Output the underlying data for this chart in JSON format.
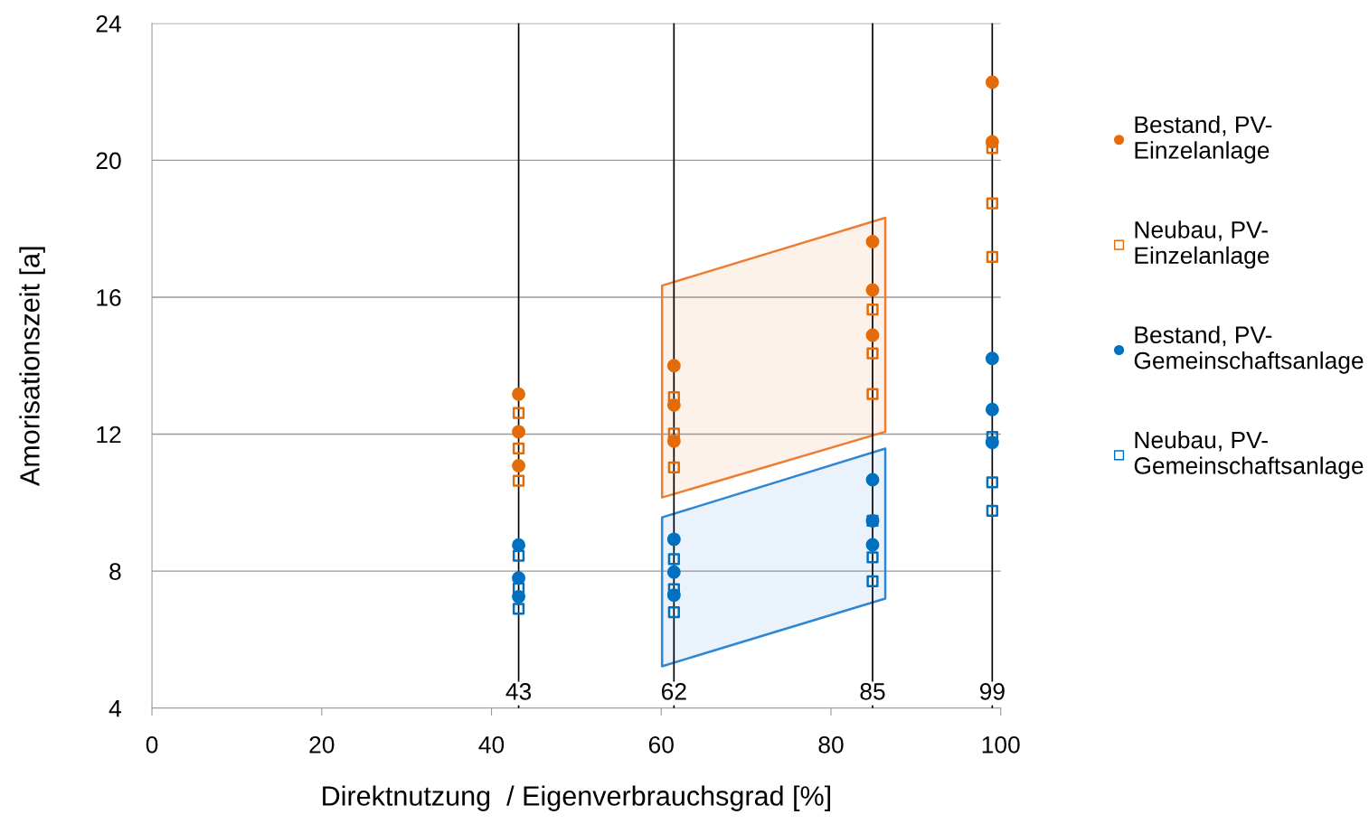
{
  "chart_data": {
    "type": "scatter",
    "xlabel": "Direktnutzung  / Eigenverbrauchsgrad [%]",
    "ylabel": "Amorisationszeit [a]",
    "xlim": [
      0,
      100
    ],
    "xticks": [
      0,
      20,
      40,
      60,
      80,
      100
    ],
    "ylim": [
      4,
      24
    ],
    "yticks": [
      4,
      8,
      12,
      16,
      20,
      24
    ],
    "grid": "y",
    "legend": "right",
    "series": [
      {
        "type": "area",
        "color": "#ed7d31",
        "x": [
          60.1,
          86.4,
          86.4,
          60.1,
          60.1
        ],
        "values": [
          16.34,
          18.32,
          12.07,
          10.15,
          16.34
        ]
      },
      {
        "type": "area",
        "color": "#2e86d4",
        "x": [
          60.1,
          86.4,
          86.4,
          60.1,
          60.1
        ],
        "values": [
          9.57,
          11.58,
          7.2,
          5.22,
          9.57
        ]
      },
      {
        "name": "Bestand, PV-\nEinzelanlage",
        "color": "#e36c09",
        "marker": "circle",
        "x": [
          43.2,
          43.2,
          43.2,
          61.5,
          61.5,
          61.5,
          84.9,
          84.9,
          84.9,
          99,
          99
        ],
        "values": [
          13.17,
          12.07,
          11.08,
          14.0,
          12.85,
          11.8,
          17.62,
          16.21,
          14.89,
          22.28,
          20.54
        ]
      },
      {
        "name": "Neubau, PV-\nEinzelanlage",
        "color": "#e36c09",
        "marker": "square",
        "x": [
          43.2,
          43.2,
          43.2,
          61.5,
          61.5,
          61.5,
          84.9,
          84.9,
          84.9,
          99,
          99,
          99
        ],
        "values": [
          12.62,
          11.58,
          10.64,
          13.08,
          12.02,
          11.03,
          15.64,
          14.36,
          13.17,
          20.36,
          18.74,
          17.18
        ]
      },
      {
        "name": "Bestand, PV-\nGemeinschaftsanlage",
        "color": "#0070c0",
        "marker": "circle",
        "x": [
          43.2,
          43.2,
          43.2,
          61.5,
          61.5,
          61.5,
          84.9,
          84.9,
          84.9,
          99,
          99,
          99
        ],
        "values": [
          8.76,
          7.8,
          7.25,
          8.93,
          7.97,
          7.3,
          10.67,
          9.47,
          8.77,
          14.21,
          12.72,
          11.76
        ]
      },
      {
        "name": "Neubau, PV-\nGemeinschaftsanlage",
        "color": "#0070c0",
        "marker": "square",
        "x": [
          43.2,
          43.2,
          43.2,
          61.5,
          61.5,
          61.5,
          84.9,
          84.9,
          84.9,
          99,
          99,
          99
        ],
        "values": [
          8.45,
          7.5,
          6.9,
          8.35,
          7.47,
          6.8,
          9.47,
          8.4,
          7.7,
          11.92,
          10.59,
          9.76
        ]
      }
    ],
    "ref_lines": [
      {
        "axis": "x",
        "value": 43.2,
        "label": "43",
        "color": "#000000"
      },
      {
        "axis": "x",
        "value": 61.5,
        "label": "62",
        "color": "#000000"
      },
      {
        "axis": "x",
        "value": 84.9,
        "label": "85",
        "color": "#000000"
      },
      {
        "axis": "x",
        "value": 99,
        "label": "99",
        "color": "#000000"
      }
    ]
  }
}
